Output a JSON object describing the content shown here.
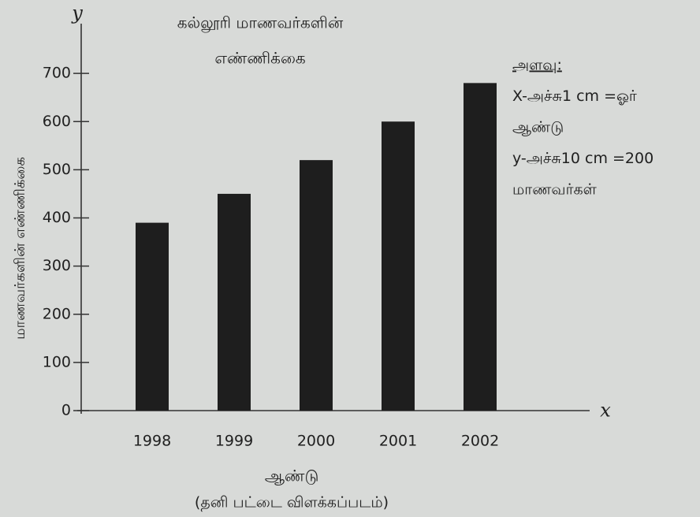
{
  "chart_data": {
    "type": "bar",
    "title": [
      "கல்லூரி மாணவர்களின்",
      "எண்ணிக்கை"
    ],
    "subtitle": "(தனி பட்டை விளக்கப்படம்)",
    "x_axis_label": "ஆண்டு",
    "y_axis_label": "மாணவர்களின் எண்ணிக்கை",
    "x_axis_letter": "x",
    "y_axis_letter": "y",
    "annotation": [
      "அளவு:",
      "X-அச்சு1 cm =ஓர்",
      "ஆண்டு",
      "y-அச்சு10 cm =200",
      "மாணவர்கள்"
    ],
    "categories": [
      "1998",
      "1999",
      "2000",
      "2001",
      "2002"
    ],
    "values": [
      390,
      450,
      520,
      600,
      680
    ],
    "color": "#1e1e1e",
    "ylim": [
      0,
      800
    ],
    "yticks": [
      0,
      100,
      200,
      300,
      400,
      500,
      600,
      700
    ],
    "grid": false
  }
}
